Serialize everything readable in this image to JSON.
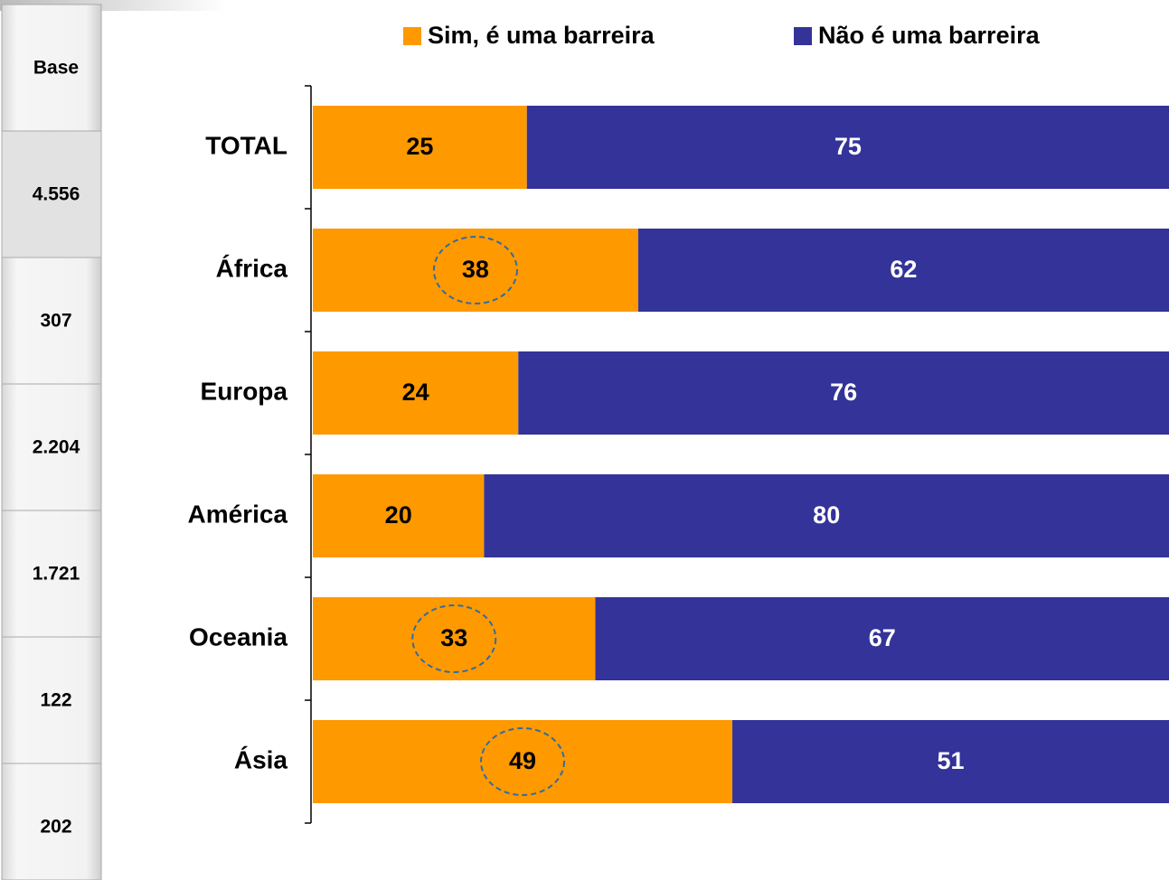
{
  "chart_data": {
    "type": "stacked-bar-horizontal",
    "categories": [
      "TOTAL",
      "África",
      "Europa",
      "América",
      "Oceania",
      "Ásia"
    ],
    "series": [
      {
        "name": "Sim, é uma barreira",
        "color": "#ff9900",
        "label_color": "#000000",
        "values": [
          25,
          38,
          24,
          20,
          33,
          49
        ]
      },
      {
        "name": "Não é uma barreira",
        "color": "#333399",
        "label_color": "#ffffff",
        "values": [
          75,
          62,
          76,
          80,
          67,
          51
        ]
      }
    ],
    "xlim": [
      0,
      100
    ],
    "circled": [
      "África",
      "Oceania",
      "Ásia"
    ],
    "base": {
      "title": "Base",
      "values": [
        4556,
        307,
        2204,
        1721,
        122,
        202
      ],
      "value_labels": [
        "4.556",
        "307",
        "2.204",
        "1.721",
        "122",
        "202"
      ]
    }
  }
}
